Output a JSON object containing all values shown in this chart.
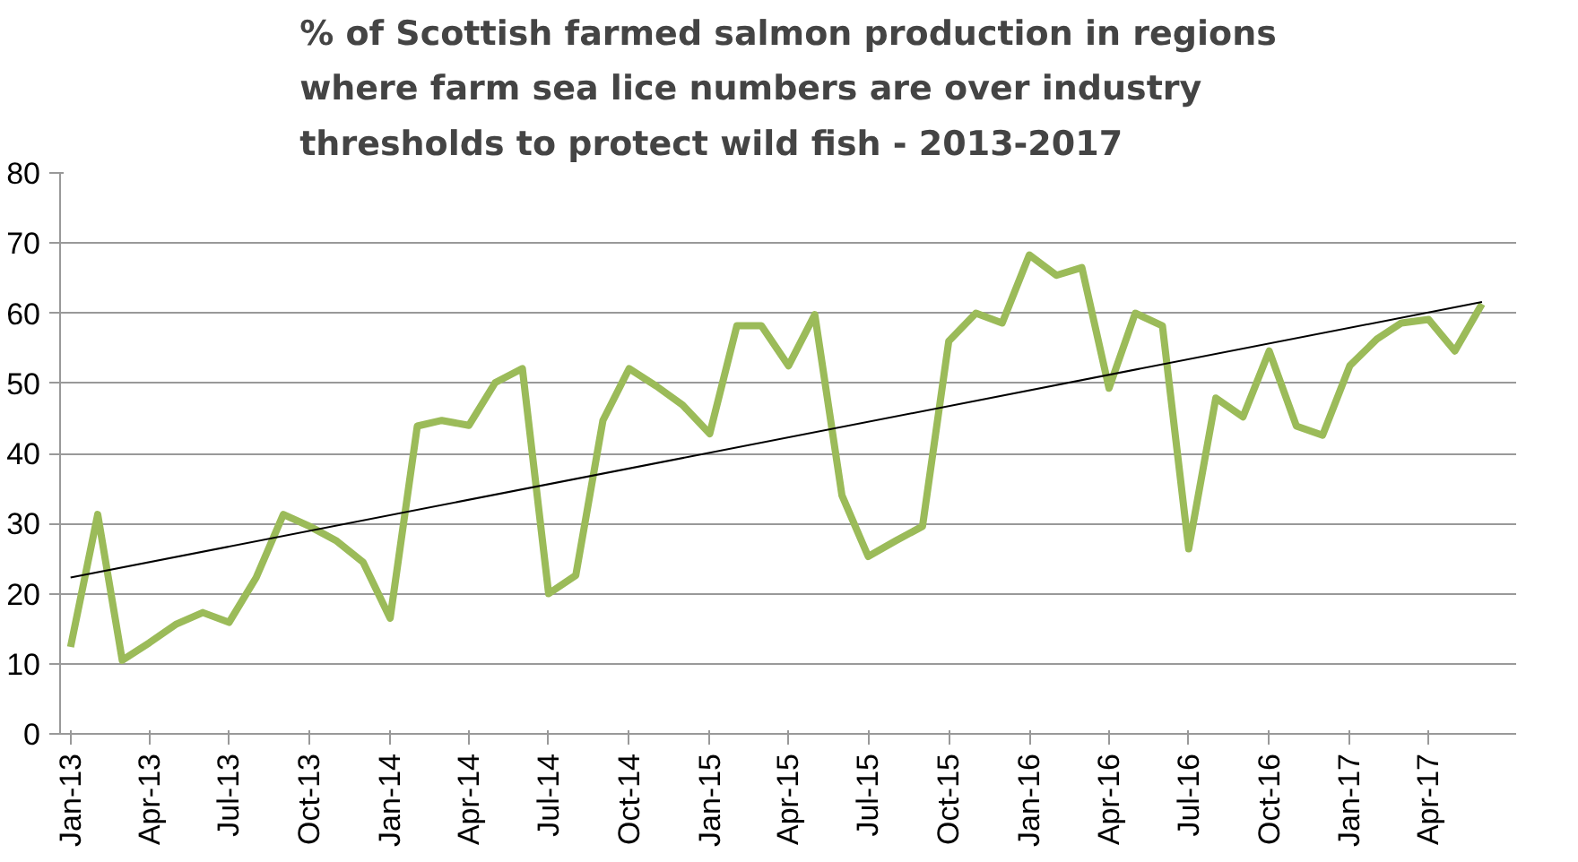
{
  "chart_data": {
    "type": "line",
    "title": "% of Scottish farmed salmon production in regions\nwhere farm sea lice numbers are over industry\nthresholds to protect wild fish - 2013-2017",
    "x": [
      "2013-01",
      "2013-02",
      "2013-03",
      "2013-04",
      "2013-05",
      "2013-06",
      "2013-07",
      "2013-08",
      "2013-09",
      "2013-10",
      "2013-11",
      "2013-12",
      "2014-01",
      "2014-02",
      "2014-03",
      "2014-04",
      "2014-05",
      "2014-06",
      "2014-07",
      "2014-08",
      "2014-09",
      "2014-10",
      "2014-11",
      "2014-12",
      "2015-01",
      "2015-02",
      "2015-03",
      "2015-04",
      "2015-05",
      "2015-06",
      "2015-07",
      "2015-08",
      "2015-09",
      "2015-10",
      "2015-11",
      "2015-12",
      "2016-01",
      "2016-02",
      "2016-03",
      "2016-04",
      "2016-05",
      "2016-06",
      "2016-07",
      "2016-08",
      "2016-09",
      "2016-10",
      "2016-11",
      "2016-12",
      "2017-01",
      "2017-02",
      "2017-03",
      "2017-04",
      "2017-05",
      "2017-06"
    ],
    "series": [
      {
        "color": "#9bbb59",
        "values": [
          12.4,
          31.3,
          10.5,
          13,
          15.6,
          17.3,
          15.9,
          22.3,
          31.3,
          29.6,
          27.5,
          24.5,
          16.5,
          43.9,
          44.7,
          44,
          50.1,
          52.1,
          20,
          22.6,
          44.7,
          52.1,
          49.6,
          46.9,
          42.8,
          58.2,
          58.2,
          52.5,
          59.8,
          34,
          25.3,
          27.5,
          29.6,
          56,
          60,
          58.6,
          68.3,
          65.4,
          66.5,
          49.3,
          60,
          58.2,
          26.4,
          47.9,
          45.2,
          54.6,
          43.9,
          42.6,
          52.5,
          56.3,
          58.6,
          59.1,
          54.6,
          61.3
        ]
      },
      {
        "type": "line",
        "color": "#000000",
        "x": [
          "2013-01",
          "2017-06"
        ],
        "values": [
          22.3,
          61.6
        ]
      }
    ],
    "xlim": [
      "2012-12-20",
      "2017-07-10"
    ],
    "xticks": [
      {
        "value": "2013-01",
        "label": "Jan-13"
      },
      {
        "value": "2013-04",
        "label": "Apr-13"
      },
      {
        "value": "2013-07",
        "label": "Jul-13"
      },
      {
        "value": "2013-10",
        "label": "Oct-13"
      },
      {
        "value": "2014-01",
        "label": "Jan-14"
      },
      {
        "value": "2014-04",
        "label": "Apr-14"
      },
      {
        "value": "2014-07",
        "label": "Jul-14"
      },
      {
        "value": "2014-10",
        "label": "Oct-14"
      },
      {
        "value": "2015-01",
        "label": "Jan-15"
      },
      {
        "value": "2015-04",
        "label": "Apr-15"
      },
      {
        "value": "2015-07",
        "label": "Jul-15"
      },
      {
        "value": "2015-10",
        "label": "Oct-15"
      },
      {
        "value": "2016-01",
        "label": "Jan-16"
      },
      {
        "value": "2016-04",
        "label": "Apr-16"
      },
      {
        "value": "2016-07",
        "label": "Jul-16"
      },
      {
        "value": "2016-10",
        "label": "Oct-16"
      },
      {
        "value": "2017-01",
        "label": "Jan-17"
      },
      {
        "value": "2017-04",
        "label": "Apr-17"
      }
    ],
    "ylim": [
      0,
      80
    ],
    "yticks": [
      0,
      10,
      20,
      30,
      40,
      50,
      60,
      70,
      80
    ],
    "grid": "y",
    "marker": "none",
    "line_style": "solid"
  }
}
